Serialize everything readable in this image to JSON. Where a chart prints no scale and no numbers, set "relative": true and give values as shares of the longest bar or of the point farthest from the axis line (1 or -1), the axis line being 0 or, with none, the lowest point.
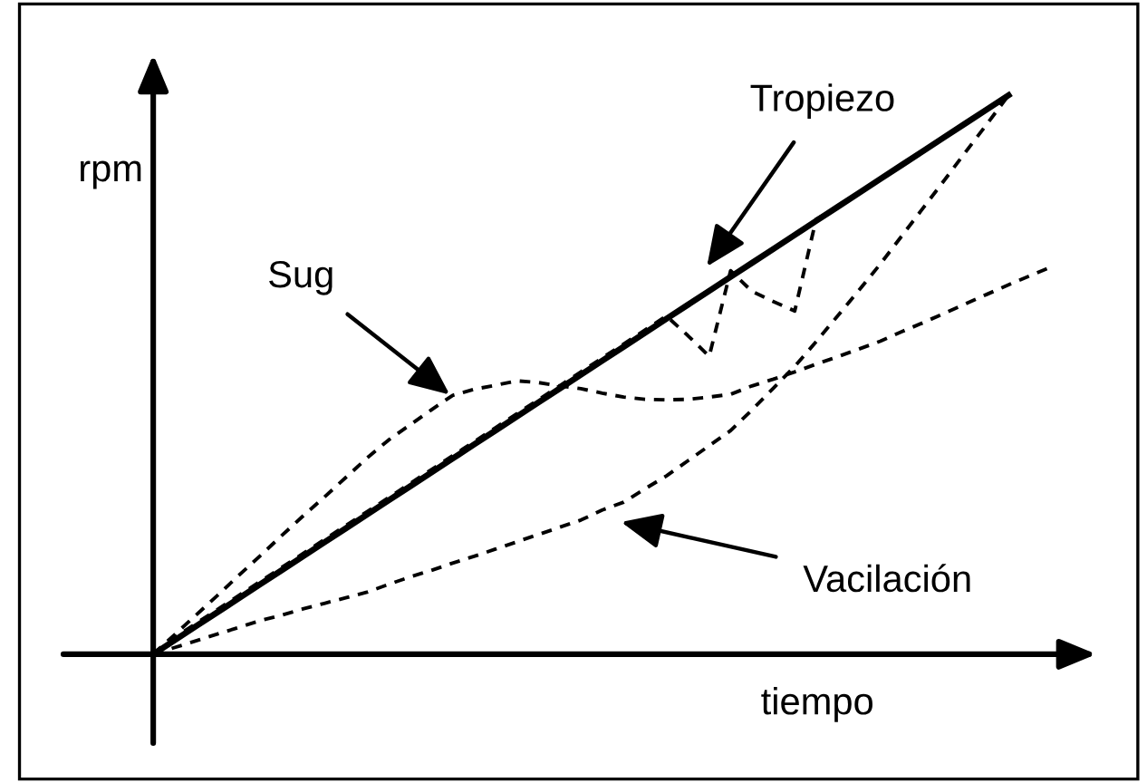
{
  "chart_data": {
    "type": "line",
    "relative": true,
    "xlabel": "tiempo",
    "ylabel": "rpm",
    "categories": [
      null,
      null,
      null,
      null,
      null,
      null,
      null,
      null,
      null,
      null,
      null,
      null,
      null,
      null,
      null,
      null,
      null,
      null,
      null,
      null,
      null,
      null,
      null,
      null,
      null,
      null,
      null,
      null,
      null,
      null,
      null,
      null,
      null,
      null,
      null,
      null,
      null,
      null,
      null,
      null,
      null,
      null,
      null
    ],
    "series": [
      {
        "color": "#000000",
        "line_style": "solid",
        "values": [
          0,
          0.025,
          0.05,
          0.075,
          0.1,
          0.125,
          0.15,
          0.175,
          0.2,
          0.225,
          0.25,
          0.275,
          0.3,
          0.325,
          0.35,
          0.375,
          0.4,
          0.425,
          0.45,
          0.475,
          0.5,
          0.525,
          0.55,
          0.575,
          0.6,
          0.625,
          0.65,
          0.675,
          0.7,
          0.725,
          0.75,
          0.775,
          0.8,
          0.825,
          0.85,
          0.875,
          0.9,
          0.925,
          0.95,
          0.975,
          1.0,
          null,
          null
        ]
      },
      {
        "color": "#000000",
        "line_style": "dashed",
        "values": [
          0,
          0.03,
          0.055,
          0.08,
          0.105,
          0.13,
          0.155,
          0.18,
          0.205,
          0.23,
          0.255,
          0.28,
          0.305,
          0.33,
          0.355,
          0.38,
          0.405,
          0.43,
          0.455,
          0.48,
          0.505,
          0.53,
          0.555,
          0.58,
          0.605,
          0.57,
          0.533,
          0.686,
          0.649,
          0.631,
          0.614,
          0.778,
          0.8,
          0.824,
          0.849,
          0.874,
          0.899,
          0.925,
          0.95,
          0.975,
          1.0,
          null,
          null
        ]
      },
      {
        "color": "#000000",
        "line_style": "dashed",
        "values": [
          0,
          0.035,
          0.07,
          0.105,
          0.141,
          0.176,
          0.212,
          0.247,
          0.281,
          0.316,
          0.351,
          0.383,
          0.41,
          0.437,
          0.463,
          0.474,
          0.481,
          0.489,
          0.486,
          0.48,
          0.475,
          0.467,
          0.46,
          0.456,
          0.455,
          0.456,
          0.46,
          0.465,
          0.48,
          0.492,
          0.505,
          0.519,
          0.532,
          0.546,
          0.56,
          0.577,
          0.593,
          0.61,
          0.627,
          0.644,
          0.661,
          0.677,
          0.693
        ]
      },
      {
        "color": "#000000",
        "line_style": "dashed",
        "values": [
          0,
          0.012,
          0.024,
          0.036,
          0.048,
          0.06,
          0.07,
          0.081,
          0.091,
          0.101,
          0.111,
          0.125,
          0.138,
          0.15,
          0.163,
          0.175,
          0.188,
          0.201,
          0.214,
          0.227,
          0.24,
          0.258,
          0.272,
          0.296,
          0.319,
          0.346,
          0.373,
          0.4,
          0.437,
          0.476,
          0.515,
          0.559,
          0.605,
          0.651,
          0.698,
          0.748,
          0.798,
          0.848,
          0.899,
          0.949,
          1.0,
          null,
          null
        ]
      }
    ],
    "annotations": [
      "Tropiezo",
      "Sug",
      "Vacilación"
    ]
  }
}
